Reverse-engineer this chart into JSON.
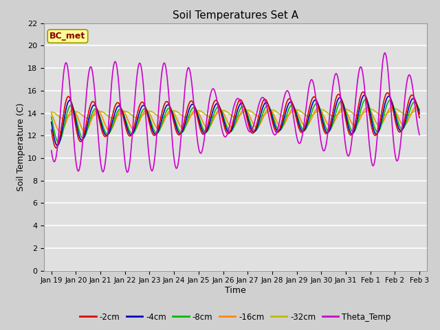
{
  "title": "Soil Temperatures Set A",
  "xlabel": "Time",
  "ylabel": "Soil Temperature (C)",
  "annotation": "BC_met",
  "ylim": [
    0,
    22
  ],
  "yticks": [
    0,
    2,
    4,
    6,
    8,
    10,
    12,
    14,
    16,
    18,
    20,
    22
  ],
  "xlabels": [
    "Jan 19",
    "Jan 20",
    "Jan 21",
    "Jan 22",
    "Jan 23",
    "Jan 24",
    "Jan 25",
    "Jan 26",
    "Jan 27",
    "Jan 28",
    "Jan 29",
    "Jan 30",
    "Jan 31",
    "Feb 1",
    "Feb 2",
    "Feb 3"
  ],
  "series_labels": [
    "-2cm",
    "-4cm",
    "-8cm",
    "-16cm",
    "-32cm",
    "Theta_Temp"
  ],
  "series_colors": [
    "#dd0000",
    "#0000bb",
    "#00bb00",
    "#ff8800",
    "#bbbb00",
    "#cc00cc"
  ],
  "series_linewidths": [
    1.2,
    1.2,
    1.2,
    1.2,
    1.2,
    1.2
  ],
  "fig_width": 6.4,
  "fig_height": 4.8,
  "dpi": 100
}
